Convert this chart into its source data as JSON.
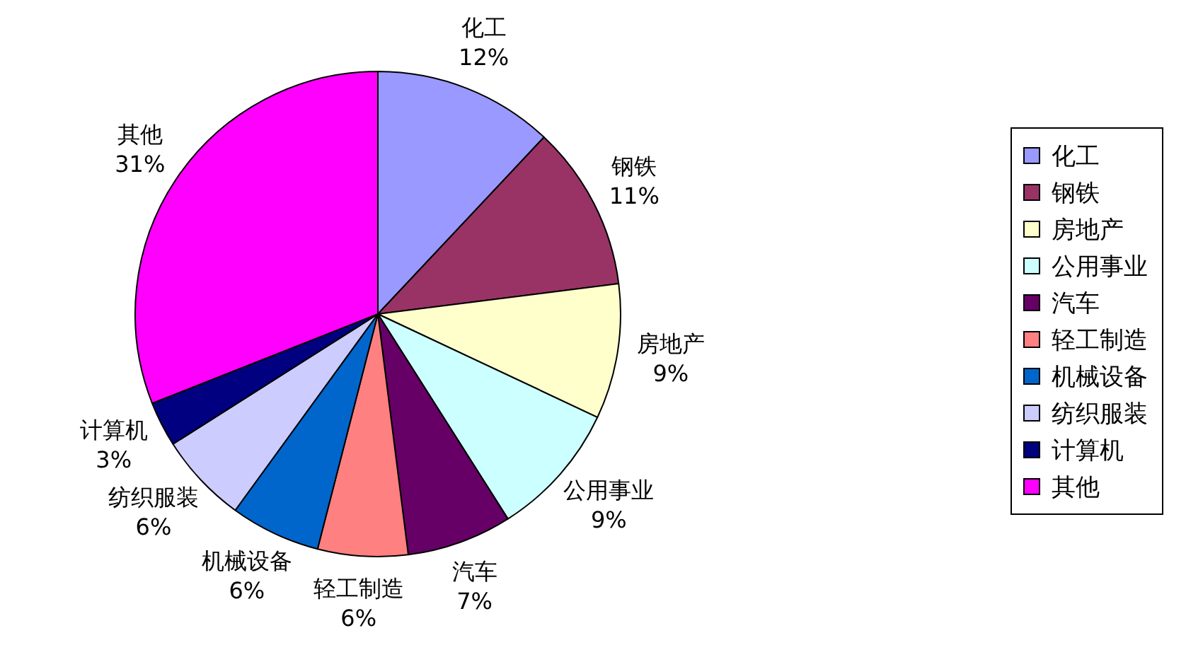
{
  "chart_data": {
    "type": "pie",
    "categories": [
      "化工",
      "钢铁",
      "房地产",
      "公用事业",
      "汽车",
      "轻工制造",
      "机械设备",
      "纺织服装",
      "计算机",
      "其他"
    ],
    "values": [
      12,
      11,
      9,
      9,
      7,
      6,
      6,
      6,
      3,
      31
    ],
    "colors": [
      "#9999ff",
      "#993366",
      "#ffffcc",
      "#ccffff",
      "#660066",
      "#ff8080",
      "#0066cc",
      "#ccccff",
      "#000080",
      "#ff00ff"
    ],
    "value_labels": [
      "12%",
      "11%",
      "9%",
      "9%",
      "7%",
      "6%",
      "6%",
      "6%",
      "3%",
      "31%"
    ],
    "legend": "right"
  }
}
